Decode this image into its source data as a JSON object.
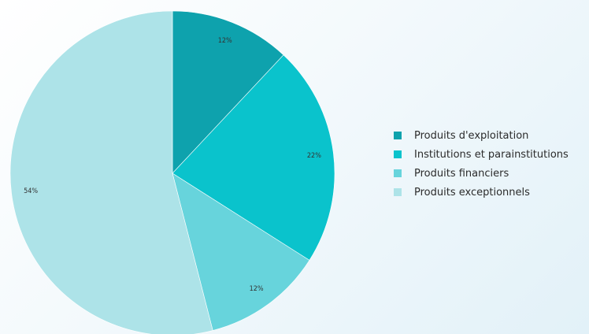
{
  "chart_data": {
    "type": "pie",
    "title": "",
    "slices": [
      {
        "name": "Produits d'exploitation",
        "value": 12,
        "label": "12%",
        "color": "#0ea2ad"
      },
      {
        "name": "Institutions et parainstitutions",
        "value": 22,
        "label": "22%",
        "color": "#0ac3cc"
      },
      {
        "name": "Produits financiers",
        "value": 12,
        "label": "12%",
        "color": "#67d4dc"
      },
      {
        "name": "Produits exceptionnels",
        "value": 54,
        "label": "54%",
        "color": "#ade3e8"
      }
    ],
    "start": "top",
    "direction": "clockwise",
    "legend_position": "right"
  }
}
